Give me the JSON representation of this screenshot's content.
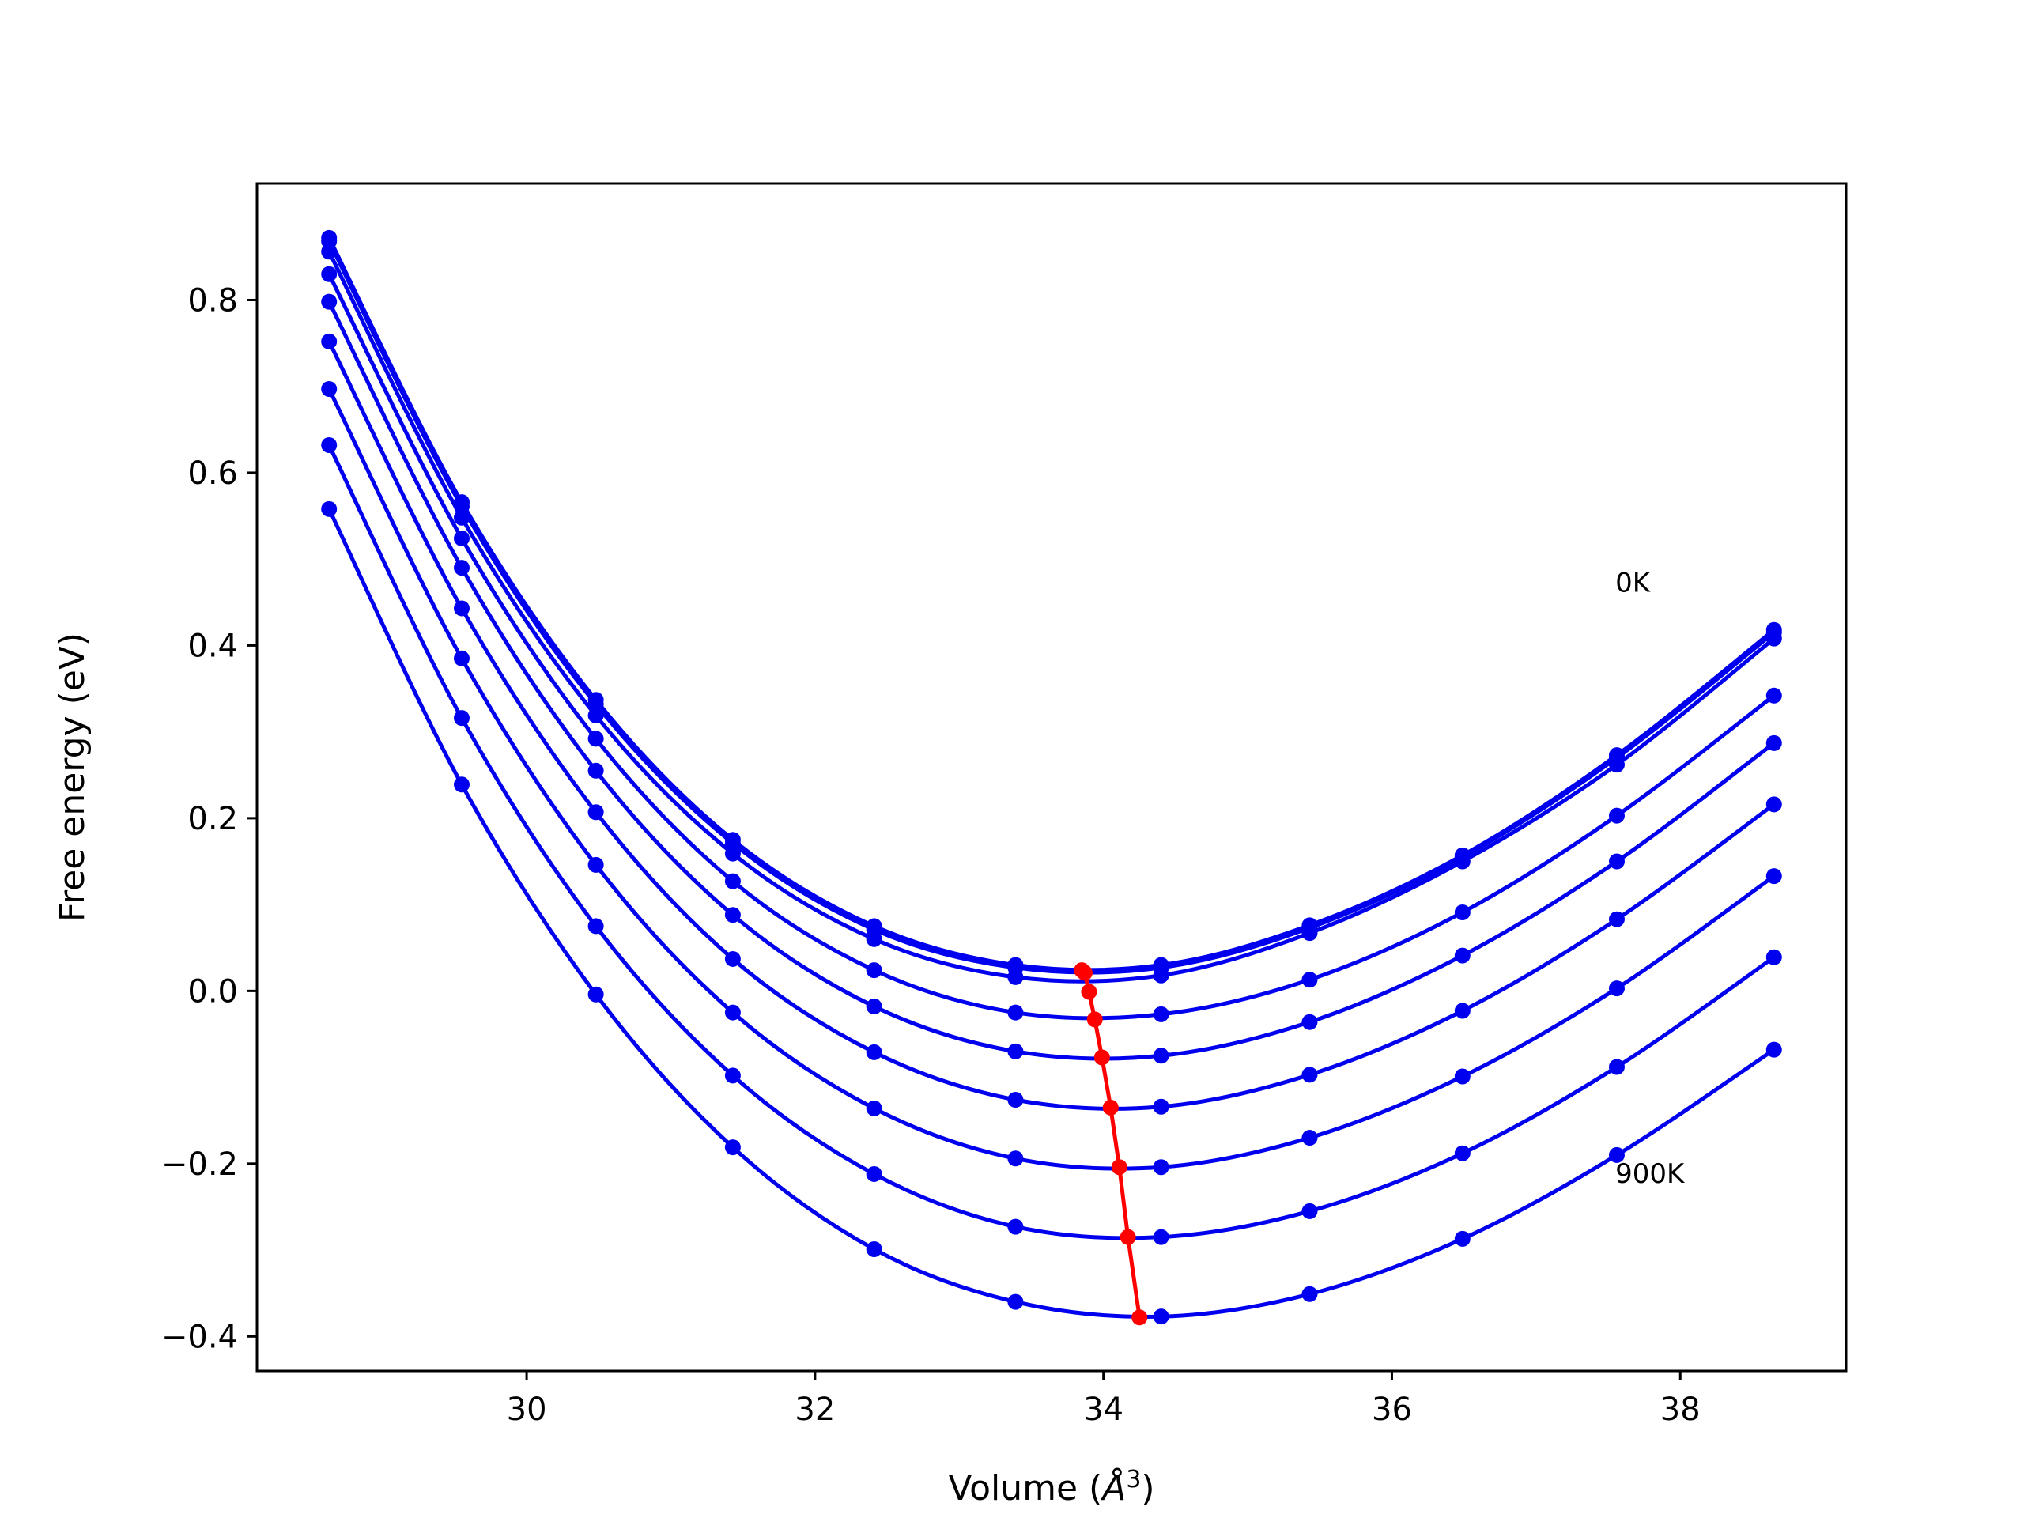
{
  "chart_data": {
    "type": "line",
    "title": "",
    "xlabel": "Volume (",
    "xlabel_unit": "Å",
    "xlabel_power": "3",
    "xlabel_close": ")",
    "ylabel": "Free energy (eV)",
    "xlim": [
      28.13,
      39.15
    ],
    "ylim": [
      -0.44,
      0.935
    ],
    "xticks": [
      30,
      32,
      34,
      36,
      38
    ],
    "yticks": [
      -0.4,
      -0.2,
      0.0,
      0.2,
      0.4,
      0.6,
      0.8
    ],
    "xtick_labels": [
      "30",
      "32",
      "34",
      "36",
      "38"
    ],
    "ytick_labels": [
      "−0.4",
      "−0.2",
      "0.0",
      "0.2",
      "0.4",
      "0.6",
      "0.8"
    ],
    "grid": false,
    "annotations": [
      {
        "text": "0K",
        "x": 37.55,
        "y": 0.462
      },
      {
        "text": "900K",
        "x": 37.55,
        "y": -0.222
      }
    ],
    "x": [
      28.63,
      29.55,
      30.48,
      31.43,
      32.41,
      33.39,
      34.4,
      35.43,
      36.49,
      37.56,
      38.65
    ],
    "curve_color": "#0000ee",
    "min_line_color": "#ff0000",
    "series": [
      {
        "values": [
          0.872,
          0.566,
          0.337,
          0.175,
          0.075,
          0.03,
          0.03,
          0.076,
          0.157,
          0.273,
          0.418
        ]
      },
      {
        "values": [
          0.868,
          0.561,
          0.332,
          0.171,
          0.071,
          0.027,
          0.027,
          0.073,
          0.155,
          0.27,
          0.415
        ]
      },
      {
        "values": [
          0.856,
          0.548,
          0.319,
          0.159,
          0.06,
          0.016,
          0.018,
          0.067,
          0.15,
          0.262,
          0.408
        ]
      },
      {
        "values": [
          0.83,
          0.524,
          0.292,
          0.127,
          0.024,
          -0.025,
          -0.027,
          0.013,
          0.091,
          0.203,
          0.342
        ]
      },
      {
        "values": [
          0.798,
          0.49,
          0.255,
          0.088,
          -0.018,
          -0.07,
          -0.075,
          -0.036,
          0.041,
          0.15,
          0.287
        ]
      },
      {
        "values": [
          0.752,
          0.443,
          0.207,
          0.037,
          -0.071,
          -0.126,
          -0.134,
          -0.097,
          -0.023,
          0.083,
          0.216
        ]
      },
      {
        "values": [
          0.697,
          0.385,
          0.146,
          -0.025,
          -0.136,
          -0.194,
          -0.204,
          -0.17,
          -0.099,
          0.003,
          0.133
        ]
      },
      {
        "values": [
          0.632,
          0.316,
          0.075,
          -0.098,
          -0.212,
          -0.273,
          -0.285,
          -0.255,
          -0.188,
          -0.088,
          0.039
        ]
      },
      {
        "values": [
          0.558,
          0.239,
          -0.004,
          -0.181,
          -0.299,
          -0.36,
          -0.377,
          -0.351,
          -0.287,
          -0.19,
          -0.068
        ]
      }
    ],
    "minimum_path": {
      "x": [
        33.85,
        33.87,
        33.9,
        33.94,
        33.99,
        34.05,
        34.11,
        34.17,
        34.25
      ],
      "y": [
        0.024,
        0.021,
        -0.001,
        -0.033,
        -0.077,
        -0.135,
        -0.204,
        -0.285,
        -0.378
      ]
    }
  }
}
